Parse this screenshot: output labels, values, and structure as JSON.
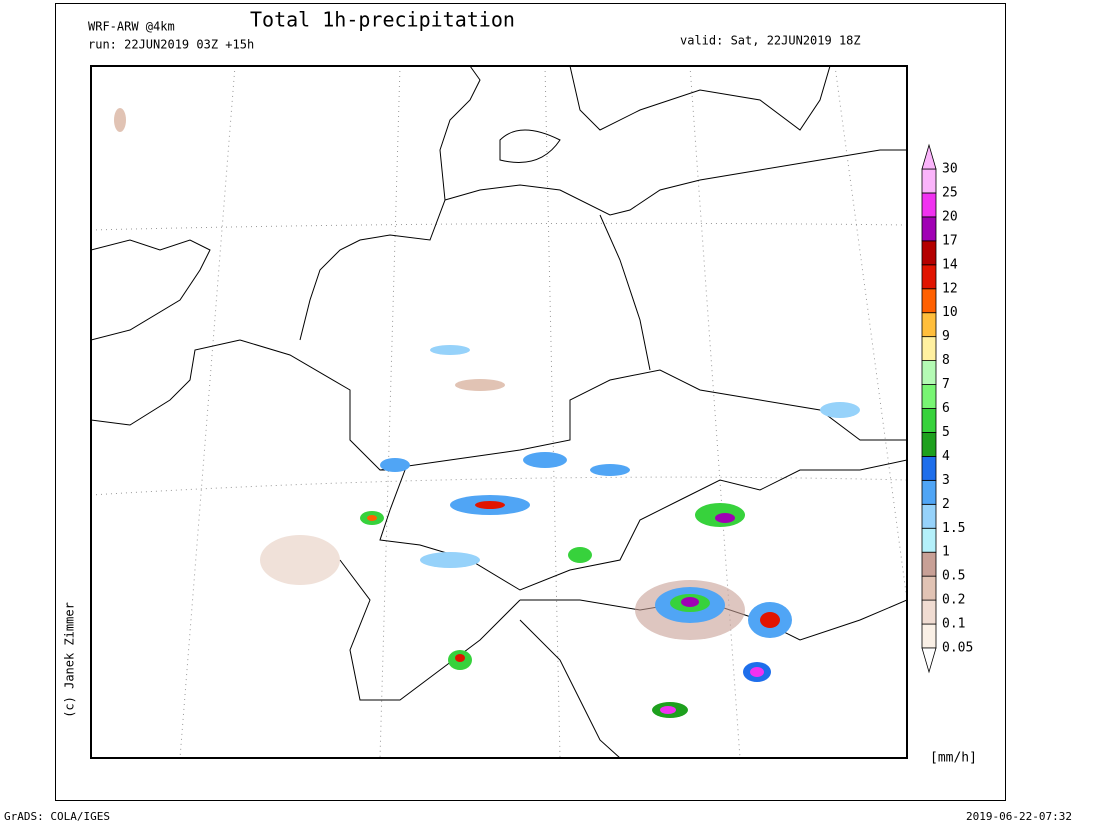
{
  "header": {
    "model": "WRF-ARW @4km",
    "title": "Total 1h-precipitation",
    "run": "run: 22JUN2019 03Z +15h",
    "valid": "valid: Sat, 22JUN2019 18Z"
  },
  "credit": "(c) Janek Zimmer",
  "colorbar": {
    "unit": "[mm/h]",
    "levels": [
      0.05,
      0.1,
      0.2,
      0.5,
      1,
      1.5,
      2,
      3,
      4,
      5,
      6,
      7,
      8,
      9,
      10,
      12,
      14,
      17,
      20,
      25,
      30
    ],
    "colors": [
      "#faf0e6",
      "#f0dcd2",
      "#e1c3b4",
      "#c8a096",
      "#b4f0fa",
      "#96d2fa",
      "#50a5f5",
      "#1e6eeb",
      "#1ea01e",
      "#37d23c",
      "#78f573",
      "#b4fab4",
      "#fff0a0",
      "#ffbe3c",
      "#ff6000",
      "#e11400",
      "#b40000",
      "#a000b4",
      "#f032f0",
      "#fab4fa"
    ]
  },
  "footer": {
    "left": "GrADS: COLA/IGES",
    "right": "2019-06-22-07:32"
  }
}
